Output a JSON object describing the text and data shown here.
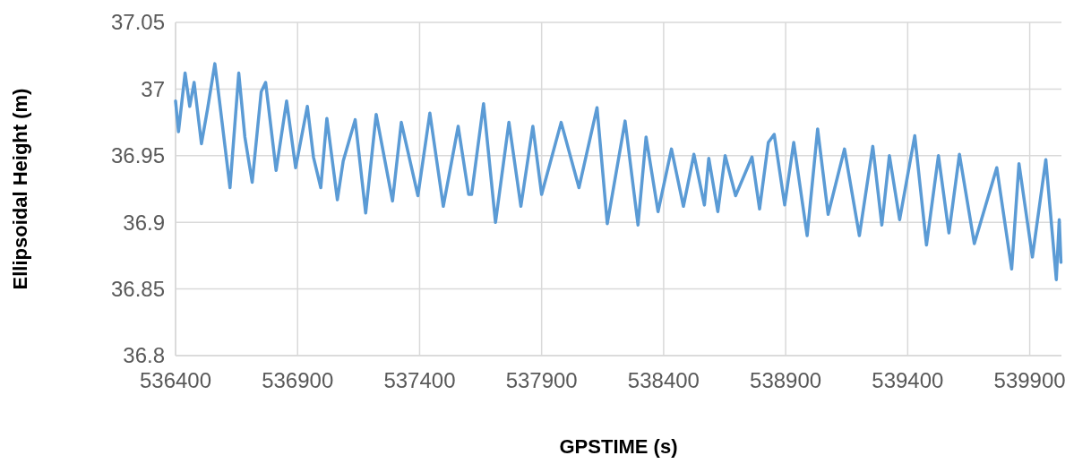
{
  "chart_data": {
    "type": "line",
    "xlabel": "GPSTIME (s)",
    "ylabel": "Ellipsoidal Height (m)",
    "xlim": [
      536400,
      540030
    ],
    "xticks": [
      536400,
      536900,
      537400,
      537900,
      538400,
      538900,
      539400,
      539900
    ],
    "ylim": [
      36.8,
      37.05
    ],
    "yticks": [
      36.8,
      36.85,
      36.9,
      36.95,
      37,
      37.05
    ],
    "grid": true,
    "series": [
      {
        "color": "#5b9bd5",
        "x": [
          536400,
          536412,
          536439,
          536458,
          536476,
          536506,
          536531,
          536561,
          536580,
          536623,
          536659,
          536684,
          536714,
          536751,
          536769,
          536812,
          536855,
          536892,
          536940,
          536965,
          536995,
          537020,
          537063,
          537087,
          537136,
          537179,
          537222,
          537289,
          537325,
          537393,
          537442,
          537497,
          537558,
          537601,
          537613,
          537662,
          537711,
          537766,
          537815,
          537864,
          537900,
          537980,
          538053,
          538127,
          538169,
          538242,
          538295,
          538328,
          538377,
          538432,
          538481,
          538524,
          538567,
          538585,
          538622,
          538652,
          538695,
          538762,
          538793,
          538829,
          538853,
          538896,
          538933,
          538988,
          539031,
          539074,
          539141,
          539202,
          539257,
          539294,
          539325,
          539367,
          539429,
          539477,
          539526,
          539569,
          539612,
          539673,
          539765,
          539826,
          539856,
          539911,
          539966,
          540009,
          540021,
          540028
        ],
        "values": [
          36.991,
          36.968,
          37.012,
          36.987,
          37.005,
          36.959,
          36.985,
          37.019,
          36.991,
          36.926,
          37.012,
          36.964,
          36.93,
          36.998,
          37.005,
          36.939,
          36.991,
          36.941,
          36.987,
          36.949,
          36.926,
          36.978,
          36.917,
          36.946,
          36.977,
          36.907,
          36.981,
          36.916,
          36.975,
          36.92,
          36.982,
          36.912,
          36.972,
          36.921,
          36.921,
          36.989,
          36.9,
          36.975,
          36.912,
          36.972,
          36.921,
          36.975,
          36.926,
          36.986,
          36.899,
          36.976,
          36.898,
          36.964,
          36.908,
          36.955,
          36.912,
          36.951,
          36.913,
          36.948,
          36.908,
          36.95,
          36.92,
          36.949,
          36.91,
          36.96,
          36.966,
          36.913,
          36.96,
          36.89,
          36.97,
          36.906,
          36.955,
          36.89,
          36.957,
          36.898,
          36.95,
          36.902,
          36.965,
          36.883,
          36.95,
          36.892,
          36.951,
          36.884,
          36.941,
          36.865,
          36.944,
          36.874,
          36.947,
          36.857,
          36.902,
          36.87
        ]
      }
    ]
  }
}
